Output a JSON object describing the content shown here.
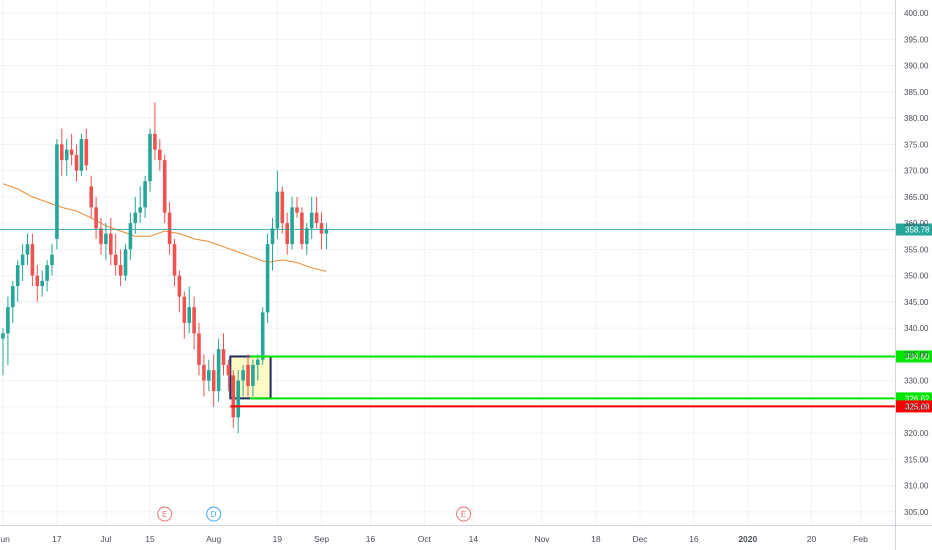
{
  "chart_data": {
    "type": "candlestick",
    "y_axis": {
      "min": 302.5,
      "max": 402.5,
      "ticks": [
        "400.00",
        "395.00",
        "390.00",
        "385.00",
        "380.00",
        "375.00",
        "370.00",
        "365.00",
        "360.00",
        "355.00",
        "350.00",
        "345.00",
        "340.00",
        "335.00",
        "330.00",
        "325.00",
        "320.00",
        "315.00",
        "310.00",
        "305.00"
      ]
    },
    "x_axis": {
      "labels": [
        {
          "text": "Jun",
          "bar": 0
        },
        {
          "text": "17",
          "bar": 11
        },
        {
          "text": "Jul",
          "bar": 21
        },
        {
          "text": "15",
          "bar": 30
        },
        {
          "text": "Aug",
          "bar": 43
        },
        {
          "text": "19",
          "bar": 56
        },
        {
          "text": "Sep",
          "bar": 65
        },
        {
          "text": "16",
          "bar": 75
        },
        {
          "text": "Oct",
          "bar": 86
        },
        {
          "text": "14",
          "bar": 96
        },
        {
          "text": "Nov",
          "bar": 110
        },
        {
          "text": "18",
          "bar": 121
        },
        {
          "text": "Dec",
          "bar": 130
        },
        {
          "text": "16",
          "bar": 141
        },
        {
          "text": "2020",
          "bar": 152,
          "bold": true
        },
        {
          "text": "20",
          "bar": 165
        },
        {
          "text": "Feb",
          "bar": 175
        }
      ]
    },
    "candles": [
      [
        338,
        340,
        331,
        339
      ],
      [
        339,
        346,
        333,
        344
      ],
      [
        344,
        349,
        341,
        348
      ],
      [
        348,
        353,
        345,
        352
      ],
      [
        352,
        356,
        349,
        354
      ],
      [
        354,
        358,
        352,
        356
      ],
      [
        356,
        358,
        348,
        350
      ],
      [
        350,
        352,
        345,
        348
      ],
      [
        348,
        351,
        346,
        349
      ],
      [
        349,
        353,
        347,
        352
      ],
      [
        352,
        356,
        350,
        354
      ],
      [
        357,
        376,
        355,
        375
      ],
      [
        375,
        378,
        369,
        372
      ],
      [
        372,
        376,
        369,
        374
      ],
      [
        374,
        377,
        371,
        373
      ],
      [
        373,
        375,
        368,
        370
      ],
      [
        370,
        377,
        369,
        376
      ],
      [
        376,
        378,
        370,
        371
      ],
      [
        367,
        369,
        361,
        363
      ],
      [
        363,
        365,
        357,
        359
      ],
      [
        359,
        361,
        354,
        356
      ],
      [
        356,
        360,
        353,
        358
      ],
      [
        358,
        361,
        352,
        354
      ],
      [
        354,
        358,
        350,
        352
      ],
      [
        352,
        355,
        348,
        350
      ],
      [
        350,
        356,
        349,
        355
      ],
      [
        355,
        362,
        353,
        360
      ],
      [
        360,
        365,
        358,
        362
      ],
      [
        362,
        367,
        360,
        363
      ],
      [
        363,
        369,
        361,
        368
      ],
      [
        368,
        378,
        366,
        377
      ],
      [
        377,
        383,
        372,
        374
      ],
      [
        374,
        376,
        370,
        372
      ],
      [
        372,
        373,
        360,
        362
      ],
      [
        362,
        364,
        354,
        356
      ],
      [
        356,
        357,
        348,
        350
      ],
      [
        350,
        351,
        343,
        346
      ],
      [
        346,
        347,
        338,
        341
      ],
      [
        341,
        348,
        339,
        344
      ],
      [
        344,
        346,
        336,
        339
      ],
      [
        339,
        341,
        331,
        333
      ],
      [
        333,
        335,
        327,
        330
      ],
      [
        330,
        334,
        328,
        332
      ],
      [
        332,
        335,
        325,
        328
      ],
      [
        328,
        338,
        326,
        336
      ],
      [
        336,
        339,
        331,
        333
      ],
      [
        333,
        334,
        328,
        331
      ],
      [
        331,
        332,
        321,
        323
      ],
      [
        323,
        332,
        320,
        330
      ],
      [
        330,
        333,
        327,
        332
      ],
      [
        333,
        335,
        327,
        329
      ],
      [
        329,
        334,
        327,
        333
      ],
      [
        333,
        335,
        330,
        334
      ],
      [
        334,
        344,
        333,
        343
      ],
      [
        343,
        358,
        341,
        356
      ],
      [
        356,
        361,
        351,
        359
      ],
      [
        359,
        370,
        357,
        366
      ],
      [
        366,
        367,
        358,
        360
      ],
      [
        360,
        362,
        354,
        356
      ],
      [
        356,
        365,
        355,
        363
      ],
      [
        363,
        365,
        361,
        362
      ],
      [
        362,
        363,
        355,
        356
      ],
      [
        356,
        360,
        354,
        359
      ],
      [
        359,
        365,
        357,
        362
      ],
      [
        362,
        365,
        359,
        360
      ],
      [
        360,
        362,
        355,
        358
      ],
      [
        358,
        360,
        355,
        358.78
      ]
    ],
    "moving_average": [
      [
        0,
        367.5
      ],
      [
        3,
        366.5
      ],
      [
        6,
        365
      ],
      [
        9,
        364
      ],
      [
        12,
        363
      ],
      [
        15,
        362.3
      ],
      [
        18,
        361
      ],
      [
        21,
        359.5
      ],
      [
        24,
        358.5
      ],
      [
        27,
        357.5
      ],
      [
        30,
        357.5
      ],
      [
        33,
        358.5
      ],
      [
        36,
        358
      ],
      [
        39,
        357
      ],
      [
        42,
        356.5
      ],
      [
        45,
        355.5
      ],
      [
        48,
        354.5
      ],
      [
        51,
        353.5
      ],
      [
        54,
        352.5
      ],
      [
        57,
        353
      ],
      [
        60,
        352.5
      ],
      [
        63,
        351.5
      ],
      [
        66,
        350.8
      ]
    ],
    "levels": [
      {
        "value": 334.6,
        "label": "334.60",
        "color": "#00e600",
        "start_bar": 51
      },
      {
        "value": 326.62,
        "label": "326.62",
        "color": "#00e600",
        "start_bar": 51
      },
      {
        "value": 325.09,
        "label": "325.09",
        "color": "#ff0000",
        "start_bar": 47
      }
    ],
    "last_price": {
      "value": 358.78,
      "label": "358.78",
      "color": "#26a69a"
    },
    "zone": {
      "from_bar": 47,
      "to_bar": 54,
      "top": 334.6,
      "bottom": 326.62,
      "fill": "#fff9c4",
      "border": "#1f2b5e"
    },
    "events": [
      {
        "letter": "E",
        "bar": 33,
        "color": "#e57373"
      },
      {
        "letter": "D",
        "bar": 43,
        "color": "#42a5f5"
      },
      {
        "letter": "E",
        "bar": 94,
        "color": "#e57373"
      }
    ],
    "colors": {
      "up": "#26a69a",
      "down": "#ef5350",
      "ma": "#f08a32",
      "grid": "#f0f3fa"
    }
  }
}
